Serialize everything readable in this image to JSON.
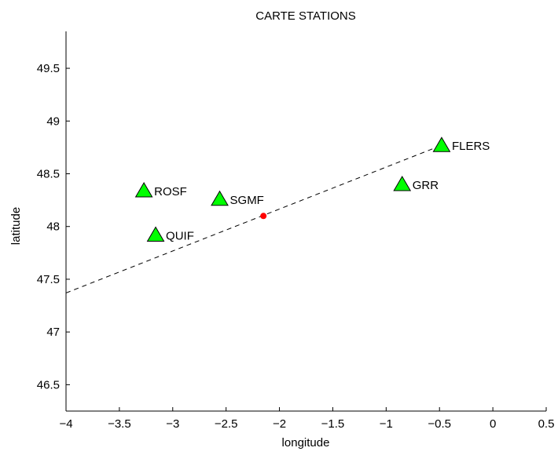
{
  "chart_data": {
    "type": "scatter",
    "title": "CARTE STATIONS",
    "xlabel": "longitude",
    "ylabel": "latitude",
    "xlim": [
      -4,
      0.5
    ],
    "ylim": [
      46.25,
      49.85
    ],
    "xticks": [
      -4,
      -3.5,
      -3,
      -2.5,
      -2,
      -1.5,
      -1,
      -0.5,
      0,
      0.5
    ],
    "xtick_labels": [
      "−4",
      "−3.5",
      "−3",
      "−2.5",
      "−2",
      "−1.5",
      "−1",
      "−0.5",
      "0",
      "0.5"
    ],
    "yticks": [
      46.5,
      47,
      47.5,
      48,
      48.5,
      49,
      49.5
    ],
    "ytick_labels": [
      "46.5",
      "47",
      "47.5",
      "48",
      "48.5",
      "49",
      "49.5"
    ],
    "grid": false,
    "stations": [
      {
        "label": "FLERS",
        "x": -0.48,
        "y": 48.77
      },
      {
        "label": "GRR",
        "x": -0.85,
        "y": 48.4
      },
      {
        "label": "ROSF",
        "x": -3.27,
        "y": 48.34
      },
      {
        "label": "SGMF",
        "x": -2.56,
        "y": 48.26
      },
      {
        "label": "QUIF",
        "x": -3.16,
        "y": 47.92
      }
    ],
    "event": {
      "x": -2.15,
      "y": 48.1
    },
    "dashed_line": {
      "x": [
        -4,
        -0.48
      ],
      "y": [
        47.37,
        48.77
      ]
    },
    "colors": {
      "station_fill": "#00ff00",
      "station_stroke": "#000000",
      "event": "#ff0000",
      "line": "#000000"
    }
  }
}
